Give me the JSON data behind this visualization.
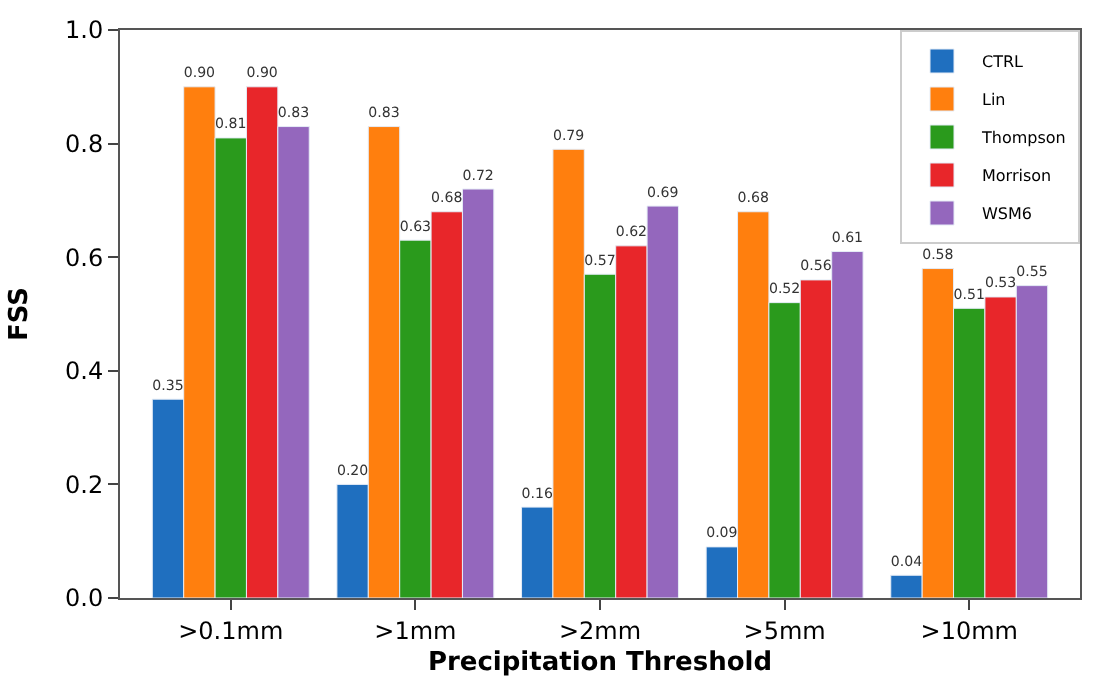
{
  "chart_data": {
    "type": "bar",
    "xlabel": "Precipitation Threshold",
    "ylabel": "FSS",
    "categories": [
      ">0.1mm",
      ">1mm",
      ">2mm",
      ">5mm",
      ">10mm"
    ],
    "series": [
      {
        "name": "CTRL",
        "color": "#1f6fbf",
        "values": [
          0.35,
          0.2,
          0.16,
          0.09,
          0.04
        ],
        "value_labels": [
          "0.35",
          "0.20",
          "0.16",
          "0.09",
          "0.04"
        ]
      },
      {
        "name": "Lin",
        "color": "#ff7f0e",
        "values": [
          0.9,
          0.83,
          0.79,
          0.68,
          0.58
        ],
        "value_labels": [
          "0.90",
          "0.83",
          "0.79",
          "0.68",
          "0.58"
        ]
      },
      {
        "name": "Thompson",
        "color": "#2a9a1c",
        "values": [
          0.81,
          0.63,
          0.57,
          0.52,
          0.51
        ],
        "value_labels": [
          "0.81",
          "0.63",
          "0.57",
          "0.52",
          "0.51"
        ]
      },
      {
        "name": "Morrison",
        "color": "#e8262a",
        "values": [
          0.9,
          0.68,
          0.62,
          0.56,
          0.53
        ],
        "value_labels": [
          "0.90",
          "0.68",
          "0.62",
          "0.56",
          "0.53"
        ]
      },
      {
        "name": "WSM6",
        "color": "#9467bd",
        "values": [
          0.83,
          0.72,
          0.69,
          0.61,
          0.55
        ],
        "value_labels": [
          "0.83",
          "0.72",
          "0.69",
          "0.61",
          "0.55"
        ]
      }
    ],
    "ylim": [
      0,
      1.0
    ],
    "yticks": [
      {
        "value": 0,
        "label": "0.0"
      },
      {
        "value": 0.2,
        "label": "0.2"
      },
      {
        "value": 0.4,
        "label": "0.4"
      },
      {
        "value": 0.6,
        "label": "0.6"
      },
      {
        "value": 0.8,
        "label": "0.8"
      },
      {
        "value": 1.0,
        "label": "1.0"
      }
    ],
    "legend": "top right",
    "grid": false
  }
}
